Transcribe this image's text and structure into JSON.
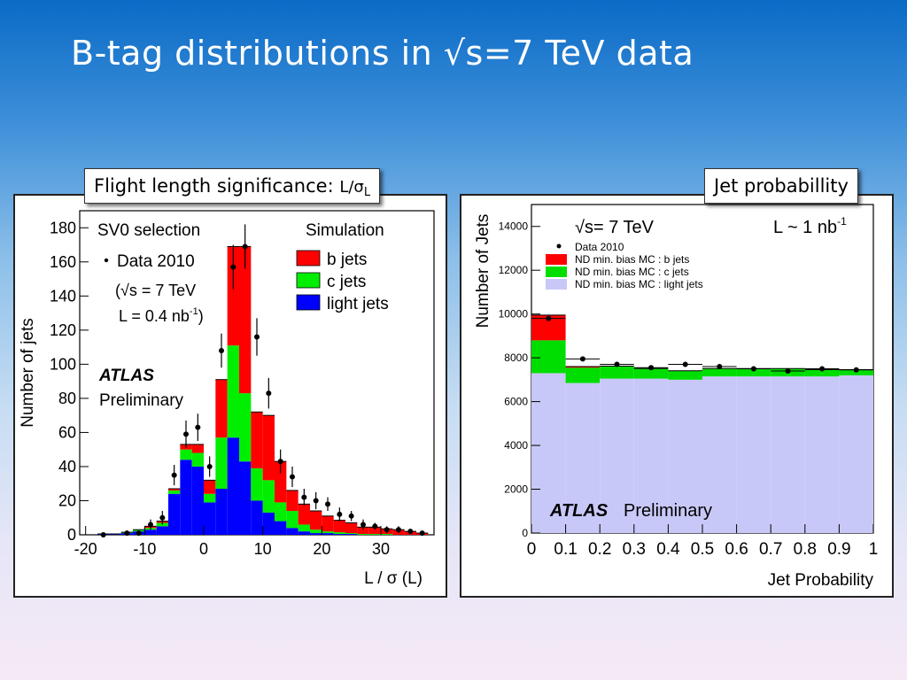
{
  "slide": {
    "title": "B-tag distributions in √s=7 TeV data",
    "caption_left": "Flight length significance:",
    "caption_left_symbol": "L/σ",
    "caption_left_sub": "L",
    "caption_right": "Jet probabillity"
  },
  "chart_data": [
    {
      "type": "bar",
      "stacked": true,
      "xlabel": "L / σ (L)",
      "ylabel": "Number of jets",
      "xlim": [
        -21,
        39
      ],
      "ylim": [
        0,
        190
      ],
      "xticks": [
        -20,
        -10,
        0,
        10,
        20,
        30
      ],
      "yticks": [
        0,
        20,
        40,
        60,
        80,
        100,
        120,
        140,
        160,
        180
      ],
      "annotations": {
        "selection": "SV0 selection",
        "data_label": "Data 2010",
        "energy": "(√s = 7 TeV",
        "lumi": "L = 0.4 nb",
        "lumi_sup": "-1",
        "lumi_close": ")",
        "atlas": "ATLAS",
        "status": "Preliminary",
        "simulation": "Simulation"
      },
      "legend": {
        "placement": "top-right",
        "entries": [
          "b jets",
          "c jets",
          "light jets"
        ]
      },
      "colors": {
        "b": "#ff0000",
        "c": "#00ee00",
        "light": "#0000ff",
        "outline": "#000000"
      },
      "bins": {
        "edges": [
          -20,
          -18,
          -16,
          -14,
          -12,
          -10,
          -8,
          -6,
          -4,
          -2,
          0,
          2,
          4,
          6,
          8,
          10,
          12,
          14,
          16,
          18,
          20,
          22,
          24,
          26,
          28,
          30,
          32,
          34,
          36,
          38
        ],
        "light": [
          0,
          0.5,
          0.5,
          1,
          2,
          3,
          5,
          24,
          44,
          40,
          19,
          27,
          57,
          43,
          20,
          13,
          8,
          4,
          2,
          1,
          1,
          0.5,
          0.5,
          0,
          0,
          0,
          0,
          0,
          0
        ],
        "c": [
          0,
          0,
          0,
          0.5,
          1,
          1,
          2,
          2,
          6,
          8,
          5,
          30,
          54,
          40,
          19,
          19,
          11,
          10,
          4,
          2,
          1,
          1,
          0.5,
          0.5,
          0.5,
          0.5,
          0,
          0,
          0
        ],
        "b": [
          0,
          0,
          0,
          0,
          0,
          1,
          1,
          1,
          3,
          5,
          8,
          34,
          58,
          86,
          33,
          38,
          24,
          12,
          12,
          11,
          9,
          7,
          6,
          4,
          4,
          3,
          3,
          2,
          1
        ]
      },
      "data_points": {
        "x": [
          -17,
          -13,
          -11,
          -9,
          -7,
          -5,
          -3,
          -1,
          1,
          3,
          5,
          7,
          9,
          11,
          13,
          15,
          17,
          19,
          21,
          23,
          25,
          27,
          29,
          31,
          33,
          35,
          37
        ],
        "y": [
          0,
          1,
          1,
          6,
          10,
          35,
          59,
          63,
          40,
          108,
          157,
          169,
          116,
          83,
          43,
          34,
          22,
          20,
          18,
          12,
          11,
          6,
          5,
          3,
          3,
          2,
          1
        ],
        "err": [
          1,
          1,
          1,
          3,
          4,
          6,
          8,
          8,
          6,
          10,
          13,
          13,
          11,
          9,
          7,
          6,
          5,
          5,
          4,
          4,
          3,
          3,
          2,
          2,
          2,
          1.5,
          1
        ]
      }
    },
    {
      "type": "bar",
      "stacked": true,
      "xlabel": "Jet Probability",
      "ylabel": "Number of Jets",
      "xlim": [
        0,
        1
      ],
      "ylim": [
        0,
        15000
      ],
      "xticks": [
        0,
        0.1,
        0.2,
        0.3,
        0.4,
        0.5,
        0.6,
        0.7,
        0.8,
        0.9,
        1
      ],
      "yticks": [
        0,
        2000,
        4000,
        6000,
        8000,
        10000,
        12000,
        14000
      ],
      "annotations": {
        "energy": "√s= 7 TeV",
        "lumi": "L ~ 1 nb",
        "lumi_sup": "-1",
        "atlas": "ATLAS",
        "status": "Preliminary"
      },
      "legend": {
        "placement": "top-left",
        "entries": [
          "Data 2010",
          "ND min. bias MC : b jets",
          "ND min. bias MC : c jets",
          "ND min. bias MC : light jets"
        ]
      },
      "colors": {
        "b": "#ff0000",
        "c": "#00dd00",
        "light": "#c8c8f8",
        "outline": "#000000"
      },
      "bins": {
        "edges": [
          0,
          0.1,
          0.2,
          0.3,
          0.4,
          0.5,
          0.6,
          0.7,
          0.8,
          0.9,
          1.0
        ],
        "light": [
          7300,
          6850,
          7050,
          7050,
          7000,
          7150,
          7150,
          7150,
          7150,
          7200
        ],
        "c": [
          1500,
          700,
          550,
          450,
          400,
          350,
          350,
          350,
          300,
          250
        ],
        "b": [
          1150,
          50,
          20,
          15,
          10,
          10,
          10,
          10,
          10,
          10
        ]
      },
      "data_points": {
        "x": [
          0.05,
          0.15,
          0.25,
          0.35,
          0.45,
          0.55,
          0.65,
          0.75,
          0.85,
          0.95
        ],
        "y": [
          9800,
          7950,
          7700,
          7550,
          7700,
          7600,
          7500,
          7400,
          7500,
          7450
        ],
        "err": [
          0,
          0,
          0,
          0,
          0,
          0,
          0,
          0,
          0,
          0
        ]
      }
    }
  ]
}
